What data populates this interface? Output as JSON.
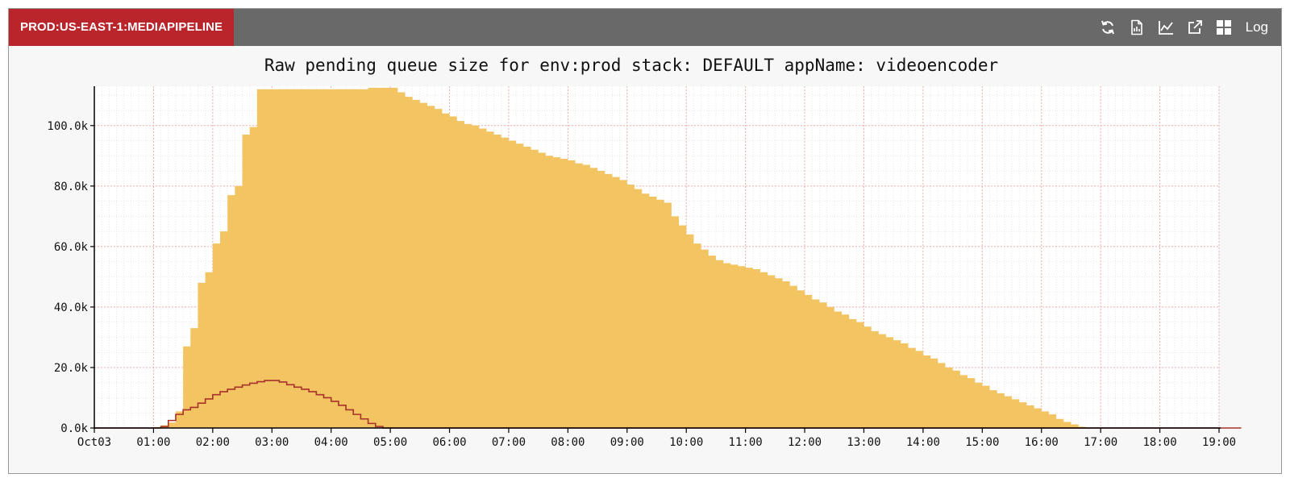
{
  "panel": {
    "env_label": "PROD:US-EAST-1:MEDIAPIPELINE",
    "toolbar": {
      "icons": [
        "refresh-icon",
        "report-icon",
        "line-chart-icon",
        "external-link-icon",
        "grid-icon"
      ],
      "log_label": "Log"
    }
  },
  "colors": {
    "header_bg": "#696969",
    "badge_bg": "#b9252b",
    "area_fill": "#f2c462",
    "line_stroke": "#a8312a",
    "grid_major": "#f2b1ac",
    "grid_minor": "#e6e6e6"
  },
  "chart_data": {
    "type": "area",
    "title": "Raw pending queue size for env:prod stack: DEFAULT appName: videoencoder",
    "xlabel": "",
    "ylabel": "",
    "x_ticks": [
      "Oct03",
      "01:00",
      "02:00",
      "03:00",
      "04:00",
      "05:00",
      "06:00",
      "07:00",
      "08:00",
      "09:00",
      "10:00",
      "11:00",
      "12:00",
      "13:00",
      "14:00",
      "15:00",
      "16:00",
      "17:00",
      "18:00",
      "19:00"
    ],
    "y_ticks": [
      "0.0k",
      "20.0k",
      "40.0k",
      "60.0k",
      "80.0k",
      "100.0k"
    ],
    "xlim_hours": [
      0,
      19
    ],
    "ylim": [
      0,
      113000
    ],
    "step_hours": 0.125,
    "grid": true,
    "series": [
      {
        "style": "filled-step",
        "values": [
          0,
          0,
          0,
          0,
          0,
          0,
          0,
          0,
          300,
          900,
          1800,
          5500,
          27000,
          33000,
          48000,
          51500,
          61000,
          65000,
          77000,
          80000,
          97000,
          99500,
          112000,
          112000,
          112000,
          112000,
          112000,
          112000,
          112000,
          112000,
          112000,
          112000,
          112000,
          112000,
          112000,
          112000,
          112000,
          112500,
          112500,
          112500,
          112500,
          111000,
          109500,
          108500,
          107500,
          106500,
          105500,
          104000,
          103000,
          101500,
          100500,
          100000,
          99000,
          98000,
          97000,
          96000,
          95000,
          94000,
          93000,
          92000,
          91000,
          90000,
          89500,
          89000,
          88500,
          87500,
          87000,
          86000,
          85000,
          84000,
          83000,
          82000,
          80500,
          79000,
          77500,
          76500,
          75500,
          74500,
          70000,
          67000,
          64000,
          61000,
          59000,
          57000,
          55500,
          54500,
          54000,
          53500,
          53000,
          52500,
          51500,
          50500,
          49500,
          48500,
          47000,
          45500,
          44000,
          42500,
          41500,
          40000,
          38500,
          37500,
          36000,
          35000,
          33500,
          32000,
          31000,
          30000,
          29000,
          28000,
          26500,
          25500,
          24000,
          23000,
          21500,
          20000,
          19000,
          17500,
          16500,
          15000,
          14000,
          12500,
          11500,
          10500,
          9500,
          8500,
          7500,
          6500,
          5500,
          4500,
          3000,
          2000,
          1200,
          400,
          0,
          0,
          0,
          0,
          0,
          0,
          0,
          0,
          0,
          0
        ]
      },
      {
        "style": "line-step",
        "values": [
          0,
          0,
          0,
          0,
          0,
          0,
          0,
          0,
          0,
          500,
          2500,
          4500,
          6000,
          6800,
          8200,
          9600,
          11000,
          12000,
          12800,
          13500,
          14200,
          14800,
          15300,
          15700,
          15700,
          15200,
          14300,
          13500,
          12800,
          12000,
          11000,
          10000,
          8800,
          7500,
          6000,
          4500,
          3000,
          1500,
          500,
          0,
          0,
          0,
          0,
          0,
          0,
          0,
          0,
          0,
          0,
          0,
          0,
          0,
          0,
          0,
          0,
          0,
          0,
          0,
          0,
          0,
          0,
          0,
          0,
          0,
          0,
          0,
          0,
          0,
          0,
          0,
          0,
          0,
          0,
          0,
          0,
          0,
          0,
          0,
          0,
          0,
          0,
          0,
          0,
          0,
          0,
          0,
          0,
          0,
          0,
          0,
          0,
          0,
          0,
          0,
          0,
          0,
          0,
          0,
          0,
          0,
          0,
          0,
          0,
          0,
          0,
          0,
          0,
          0,
          0,
          0,
          0,
          0,
          0,
          0,
          0,
          0,
          0,
          0,
          0,
          0,
          0,
          0,
          0,
          0,
          0,
          0,
          0,
          0,
          0,
          0,
          0,
          0,
          0,
          0,
          0,
          0,
          0,
          0,
          0,
          0,
          0,
          0,
          0,
          0,
          0,
          0,
          0,
          0,
          0,
          0,
          0,
          0,
          0,
          0,
          0
        ]
      }
    ]
  }
}
